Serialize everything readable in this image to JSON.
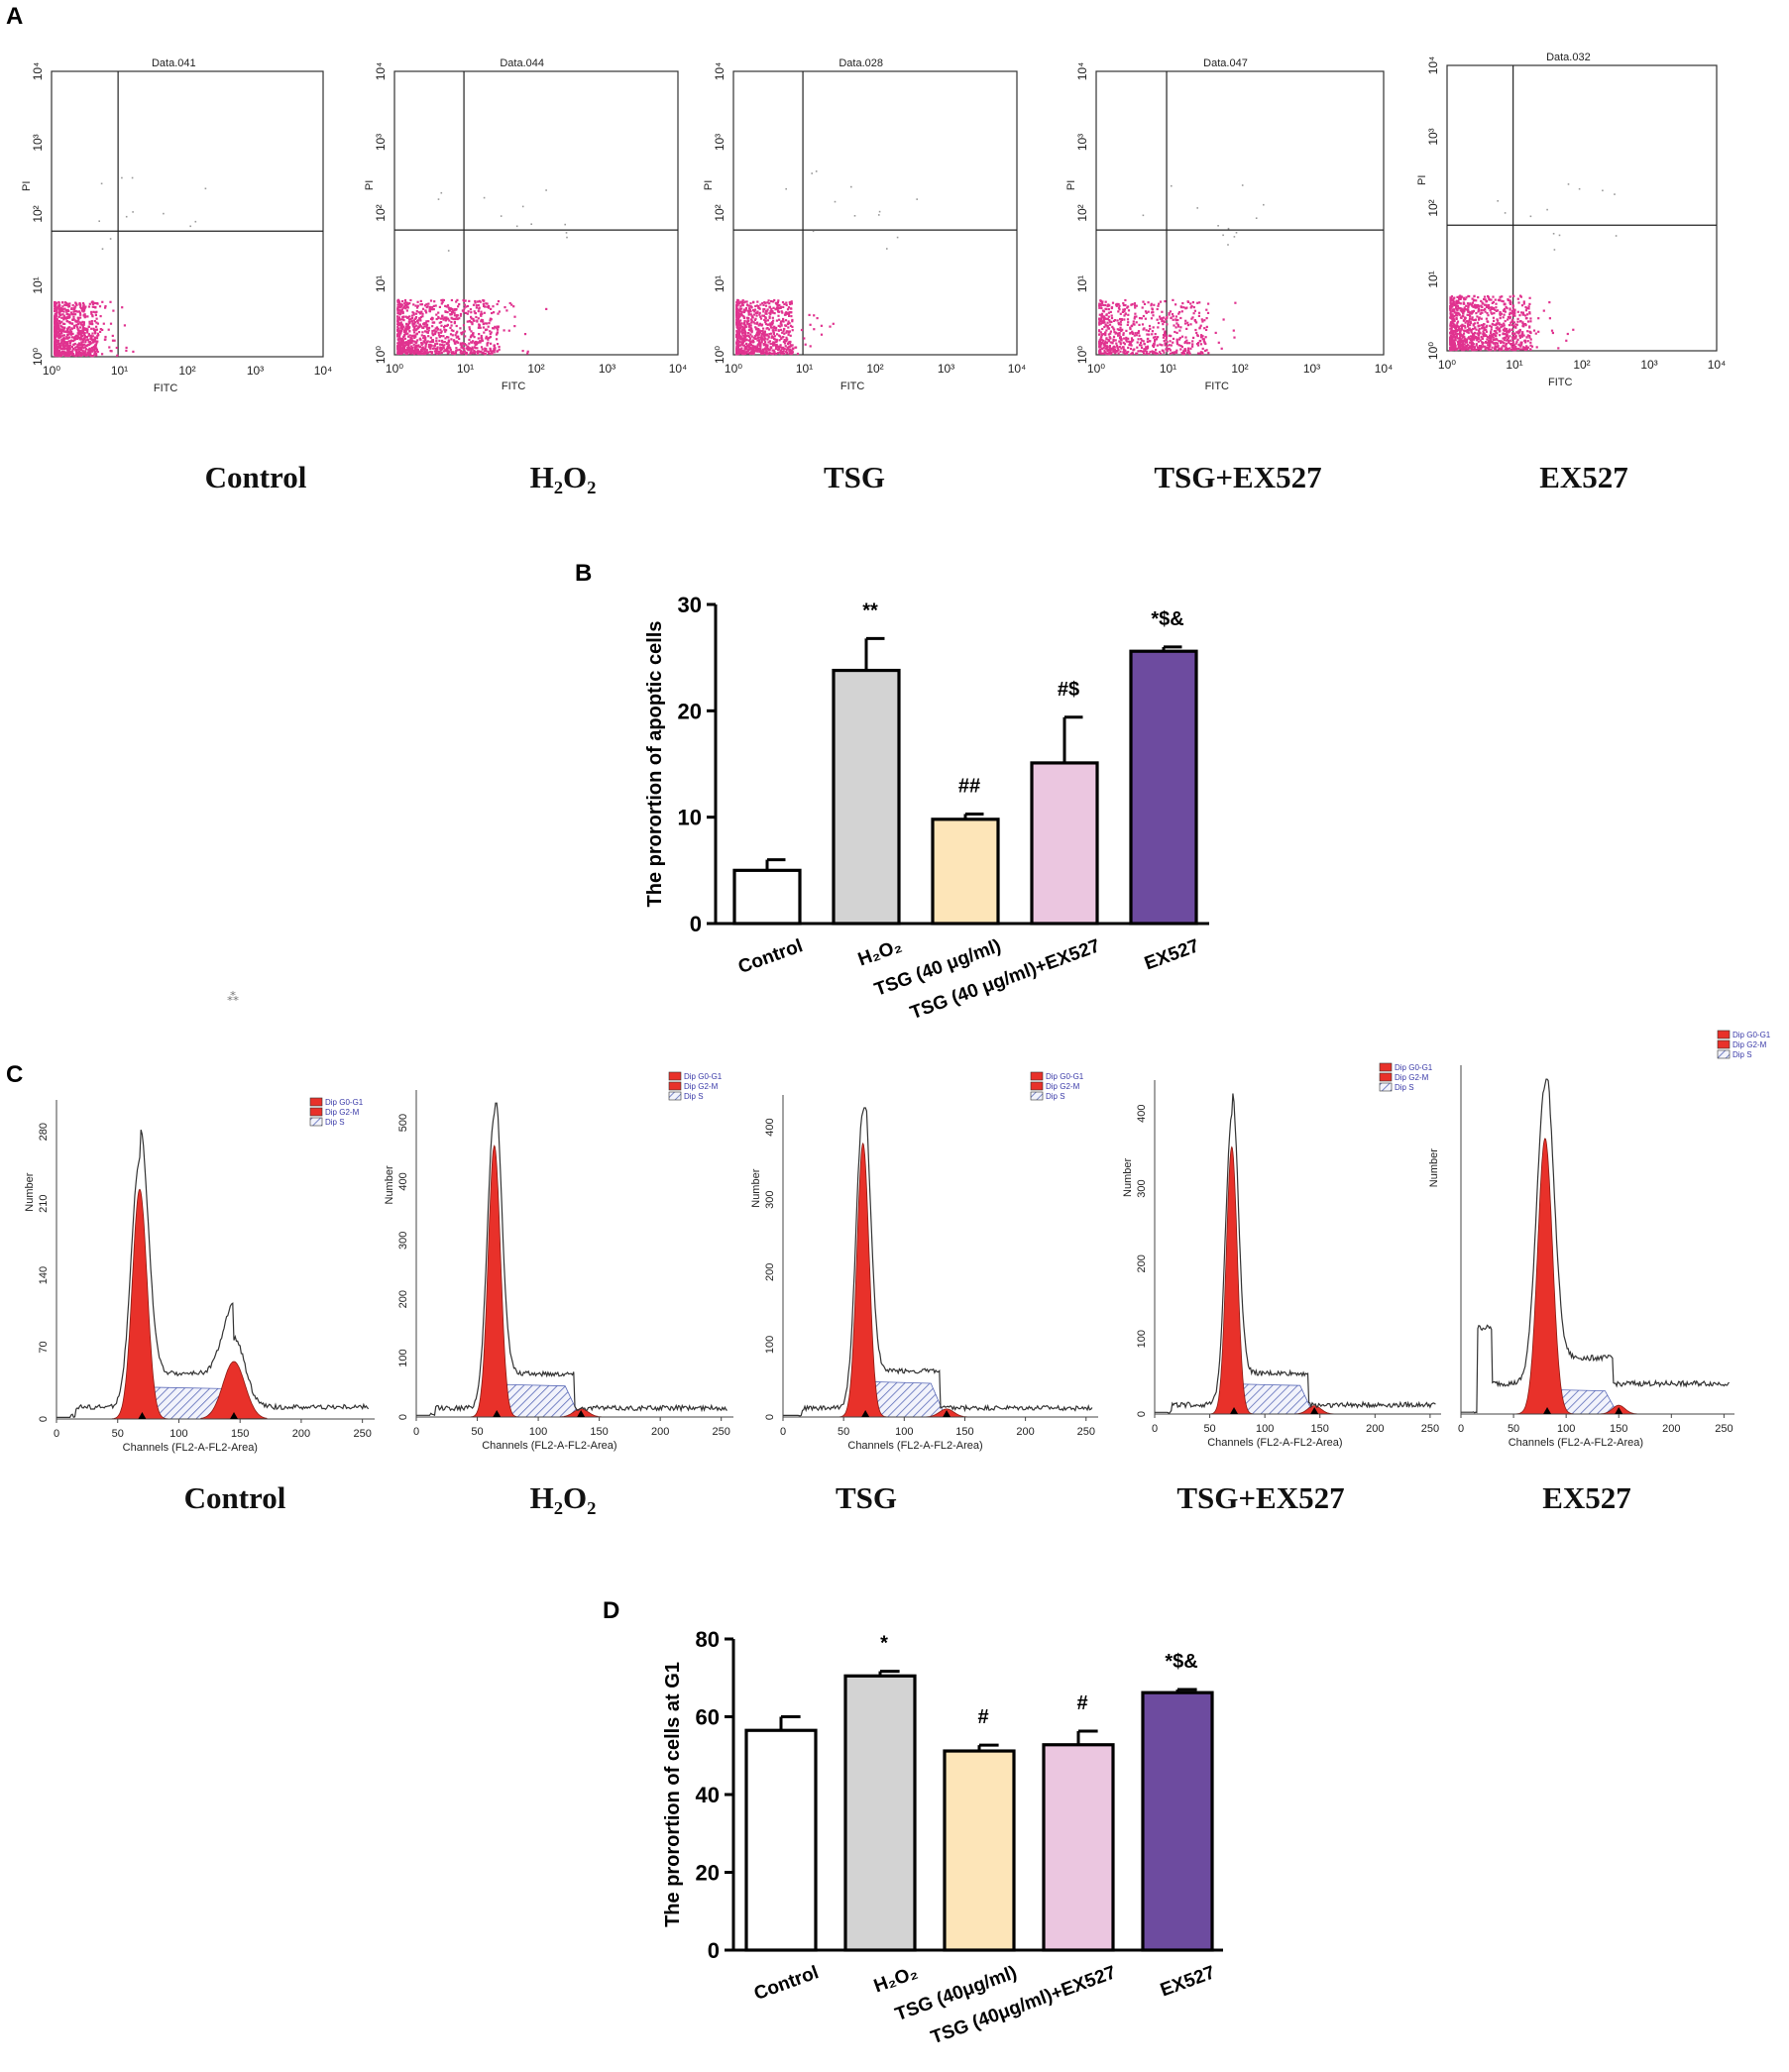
{
  "panel_labels": {
    "a": "A",
    "b": "B",
    "c": "C",
    "d": "D"
  },
  "groups": [
    "Control",
    "H₂O₂",
    "TSG",
    "TSG+EX527",
    "EX527"
  ],
  "flow_plots": {
    "titles": [
      "Data.041",
      "Data.044",
      "Data.028",
      "Data.047",
      "Data.032"
    ],
    "xlabel": "FITC",
    "ylabel": "PI",
    "decades": [
      "10⁰",
      "10¹",
      "10²",
      "10³",
      "10⁴"
    ],
    "dot_color": "#e0338f"
  },
  "cell_cycle": {
    "xlabel": "Channels (FL2-A-FL2-Area)",
    "ylabel": "Number",
    "legend": [
      "Dip G0-G1",
      "Dip G2-M",
      "Dip S"
    ],
    "x_ticks": [
      "0",
      "50",
      "100",
      "150",
      "200",
      "250"
    ],
    "y_ticks": [
      [
        "0",
        "70",
        "140",
        "210",
        "280"
      ],
      [
        "0",
        "100",
        "200",
        "300",
        "400",
        "500"
      ],
      [
        "0",
        "100",
        "200",
        "300",
        "400"
      ],
      [
        "0",
        "100",
        "200",
        "300",
        "400"
      ],
      []
    ],
    "peak_color": "#e8312a"
  },
  "chart_data": [
    {
      "type": "bar",
      "panel": "B",
      "categories": [
        "Control",
        "H₂O₂",
        "TSG (40 μg/ml)",
        "TSG (40 μg/ml)+EX527",
        "EX527"
      ],
      "values": [
        5,
        23.8,
        9.8,
        15.1,
        25.6
      ],
      "errors": [
        1.0,
        3.0,
        0.5,
        4.3,
        0.4
      ],
      "annotations": [
        "",
        "**",
        "##",
        "#$",
        "*$&"
      ],
      "colors": [
        "#ffffff",
        "#d3d3d3",
        "#fde5b8",
        "#ebc6e0",
        "#6d4b9f"
      ],
      "ylabel": "The prorortion of apoptic cells",
      "ylim": [
        0,
        30
      ],
      "yticks": [
        0,
        10,
        20,
        30
      ]
    },
    {
      "type": "bar",
      "panel": "D",
      "categories": [
        "Control",
        "H₂O₂",
        "TSG (40μg/ml)",
        "TSG (40μg/ml)+EX527",
        "EX527"
      ],
      "values": [
        56.5,
        70.5,
        51.2,
        52.8,
        66.2
      ],
      "errors": [
        3.5,
        1.2,
        1.5,
        3.5,
        0.8
      ],
      "annotations": [
        "",
        "*",
        "#",
        "#",
        "*$&"
      ],
      "colors": [
        "#ffffff",
        "#d3d3d3",
        "#fde5b8",
        "#ebc6e0",
        "#6d4b9f"
      ],
      "ylabel": "The prorortion of cells at G1",
      "ylim": [
        0,
        80
      ],
      "yticks": [
        0,
        20,
        40,
        60,
        80
      ]
    }
  ]
}
